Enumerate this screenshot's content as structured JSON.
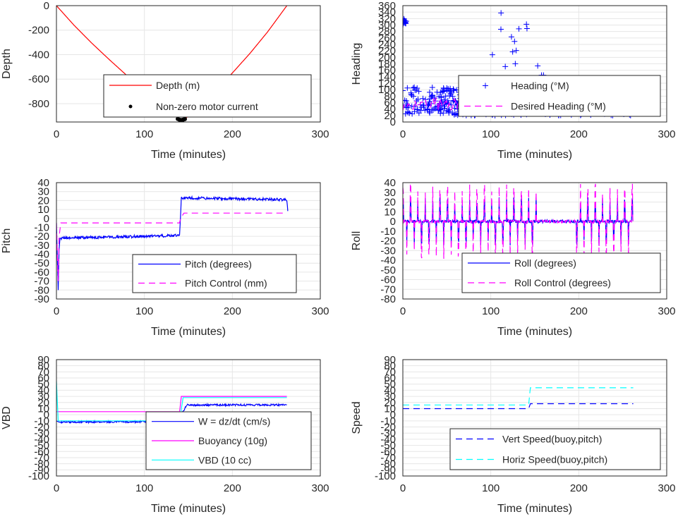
{
  "chart_data": [
    {
      "type": "line",
      "xlabel": "Time (minutes)",
      "ylabel": "Depth",
      "xlim": [
        0,
        300
      ],
      "ylim": [
        -950,
        0
      ],
      "xticks": [
        "0",
        "100",
        "200",
        "300"
      ],
      "yticks": [
        "0",
        "-200",
        "-400",
        "-600",
        "-800"
      ],
      "grid": true,
      "legend_position": "lower-right",
      "series": [
        {
          "name": "Depth (m)",
          "style": "line",
          "color": "#ff0000",
          "x": [
            0,
            20,
            40,
            60,
            80,
            100,
            120,
            140,
            145,
            160,
            180,
            200,
            220,
            240,
            262
          ],
          "y": [
            0,
            -160,
            -305,
            -440,
            -570,
            -690,
            -810,
            -930,
            -932,
            -840,
            -700,
            -550,
            -390,
            -215,
            0
          ]
        },
        {
          "name": "Non-zero motor current",
          "style": "marker",
          "color": "#000000",
          "x": [
            138,
            140,
            142,
            144,
            146
          ],
          "y": [
            -925,
            -932,
            -934,
            -931,
            -926
          ]
        }
      ]
    },
    {
      "type": "line",
      "xlabel": "Time (minutes)",
      "ylabel": "Heading",
      "xlim": [
        0,
        300
      ],
      "ylim": [
        0,
        360
      ],
      "xticks": [
        "0",
        "100",
        "200",
        "300"
      ],
      "yticks": [
        "0",
        "20",
        "40",
        "60",
        "80",
        "100",
        "120",
        "140",
        "160",
        "180",
        "200",
        "220",
        "240",
        "260",
        "280",
        "300",
        "320",
        "340",
        "360"
      ],
      "grid": true,
      "legend_position": "right",
      "series": [
        {
          "name": "Heading (°M)",
          "style": "marker",
          "color": "#0000ff"
        },
        {
          "name": "Desired Heading (°M)",
          "style": "dash",
          "color": "#ff00ff"
        }
      ]
    },
    {
      "type": "line",
      "xlabel": "Time (minutes)",
      "ylabel": "Pitch",
      "xlim": [
        0,
        300
      ],
      "ylim": [
        -90,
        40
      ],
      "xticks": [
        "0",
        "100",
        "200",
        "300"
      ],
      "yticks": [
        "40",
        "30",
        "20",
        "10",
        "0",
        "-10",
        "-20",
        "-30",
        "-40",
        "-50",
        "-60",
        "-70",
        "-80",
        "-90"
      ],
      "grid": true,
      "legend_position": "lower-right",
      "series": [
        {
          "name": "Pitch (degrees)",
          "style": "line",
          "color": "#0000ff",
          "x": [
            0,
            2,
            3,
            4,
            140,
            141,
            142,
            262,
            263
          ],
          "y": [
            -5,
            -80,
            -35,
            -22,
            -19,
            2,
            23,
            21,
            7
          ]
        },
        {
          "name": "Pitch Control (mm)",
          "style": "dash",
          "color": "#ff00ff",
          "x": [
            0,
            2,
            3,
            5,
            140,
            141,
            145,
            262
          ],
          "y": [
            -5,
            -70,
            -20,
            -5,
            -5,
            0,
            6,
            6
          ]
        }
      ]
    },
    {
      "type": "line",
      "xlabel": "Time (minutes)",
      "ylabel": "Roll",
      "xlim": [
        0,
        300
      ],
      "ylim": [
        -80,
        40
      ],
      "xticks": [
        "0",
        "100",
        "200",
        "300"
      ],
      "yticks": [
        "40",
        "30",
        "20",
        "10",
        "0",
        "-10",
        "-20",
        "-30",
        "-40",
        "-50",
        "-60",
        "-70",
        "-80"
      ],
      "grid": true,
      "legend_position": "lower-right",
      "series": [
        {
          "name": "Roll (degrees)",
          "style": "line",
          "color": "#0000ff"
        },
        {
          "name": "Roll Control (degrees)",
          "style": "dash",
          "color": "#ff00ff"
        }
      ]
    },
    {
      "type": "line",
      "xlabel": "Time (minutes)",
      "ylabel": "VBD",
      "xlim": [
        0,
        300
      ],
      "ylim": [
        -100,
        90
      ],
      "xticks": [
        "0",
        "100",
        "200",
        "300"
      ],
      "yticks": [
        "90",
        "80",
        "70",
        "60",
        "50",
        "40",
        "30",
        "20",
        "10",
        "0",
        "-10",
        "-20",
        "-30",
        "-40",
        "-50",
        "-60",
        "-70",
        "-80",
        "-90",
        "-100"
      ],
      "grid": true,
      "legend_position": "lower-right",
      "series": [
        {
          "name": "W = dz/dt (cm/s)",
          "style": "line",
          "color": "#0000ff",
          "x": [
            0,
            3,
            140,
            142,
            148,
            262
          ],
          "y": [
            -10,
            -12,
            -11,
            0,
            16,
            16
          ]
        },
        {
          "name": "Buoyancy (10g)",
          "style": "line",
          "color": "#ff00ff",
          "x": [
            0,
            140,
            142,
            262
          ],
          "y": [
            5,
            5,
            30,
            30
          ]
        },
        {
          "name": "VBD (10 cc)",
          "style": "line",
          "color": "#00ffff",
          "x": [
            0,
            2,
            4,
            140,
            144,
            262
          ],
          "y": [
            55,
            -10,
            -10,
            -10,
            28,
            28
          ]
        }
      ]
    },
    {
      "type": "line",
      "xlabel": "Time (minutes)",
      "ylabel": "Speed",
      "xlim": [
        0,
        300
      ],
      "ylim": [
        -100,
        90
      ],
      "xticks": [
        "0",
        "100",
        "200",
        "300"
      ],
      "yticks": [
        "90",
        "80",
        "70",
        "60",
        "50",
        "40",
        "30",
        "20",
        "10",
        "0",
        "-10",
        "-20",
        "-30",
        "-40",
        "-50",
        "-60",
        "-70",
        "-80",
        "-90",
        "-100"
      ],
      "grid": true,
      "legend_position": "lower-right",
      "series": [
        {
          "name": "Vert Speed(buoy,pitch)",
          "style": "dash",
          "color": "#0000ff",
          "x": [
            0,
            143,
            145,
            262
          ],
          "y": [
            10,
            10,
            18,
            18
          ]
        },
        {
          "name": "Horiz Speed(buoy,pitch)",
          "style": "dash",
          "color": "#00ffff",
          "x": [
            0,
            143,
            145,
            262
          ],
          "y": [
            16,
            16,
            44,
            44
          ]
        }
      ]
    }
  ]
}
